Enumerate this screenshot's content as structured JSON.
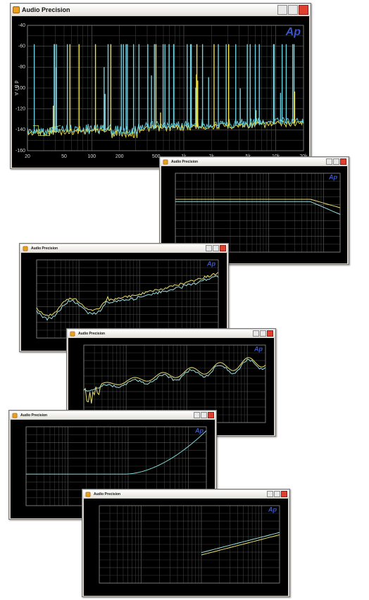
{
  "logo": "Ap",
  "windows": [
    {
      "title": "Audio Precision",
      "y_axis_label": "d B r A",
      "y_ticks": [
        "-40",
        "-60",
        "-80",
        "-100",
        "-120",
        "-140",
        "-160"
      ],
      "x_ticks": [
        "20",
        "50",
        "100",
        "200",
        "500",
        "1k",
        "2k",
        "5k",
        "10k",
        "20k"
      ]
    },
    {
      "title": "Audio Precision"
    },
    {
      "title": "Audio Precision"
    },
    {
      "title": "Audio Precision"
    },
    {
      "title": "Audio Precision"
    },
    {
      "title": "Audio Precision"
    }
  ]
}
